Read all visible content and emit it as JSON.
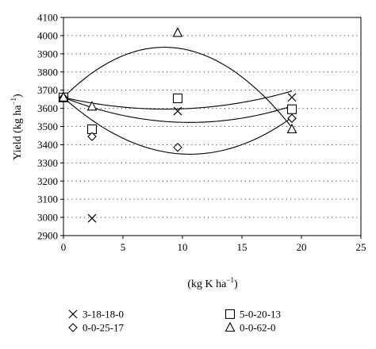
{
  "chart_data": {
    "type": "scatter",
    "title": "",
    "xlabel_text": "(kg K ha",
    "xlabel_sup": "−1",
    "xlabel_close": ")",
    "ylabel_text": "Yield (kg ha",
    "ylabel_sup": "−1",
    "ylabel_close": ")",
    "xlim": [
      0,
      25
    ],
    "ylim": [
      2900,
      4100
    ],
    "xticks": [
      0,
      5,
      10,
      15,
      20,
      25
    ],
    "yticks": [
      2900,
      3000,
      3100,
      3200,
      3300,
      3400,
      3500,
      3600,
      3700,
      3800,
      3900,
      4000,
      4100
    ],
    "grid": "horizontal-dotted",
    "legend_position": "bottom",
    "series": [
      {
        "name": "3-18-18-0",
        "marker": "x",
        "x": [
          0,
          2.4,
          9.6,
          19.2
        ],
        "y": [
          3660,
          2995,
          3585,
          3660
        ],
        "fit": [
          3660,
          -15.02,
          0.877
        ]
      },
      {
        "name": "5-0-20-13",
        "marker": "square",
        "x": [
          0,
          2.4,
          9.6,
          19.2
        ],
        "y": [
          3660,
          3485,
          3655,
          3595
        ],
        "fit": [
          3660,
          -25.9,
          1.22
        ]
      },
      {
        "name": "0-0-25-17",
        "marker": "diamond",
        "x": [
          0,
          2.4,
          9.6,
          19.2
        ],
        "y": [
          3660,
          3445,
          3385,
          3545
        ],
        "fit": [
          3660,
          -58.72,
          2.76
        ]
      },
      {
        "name": "0-0-62-0",
        "marker": "triangle",
        "x": [
          0,
          2.4,
          9.6,
          19.2
        ],
        "y": [
          3660,
          3610,
          4015,
          3485
        ],
        "fit": [
          3660,
          65.1,
          -3.84
        ]
      }
    ]
  }
}
